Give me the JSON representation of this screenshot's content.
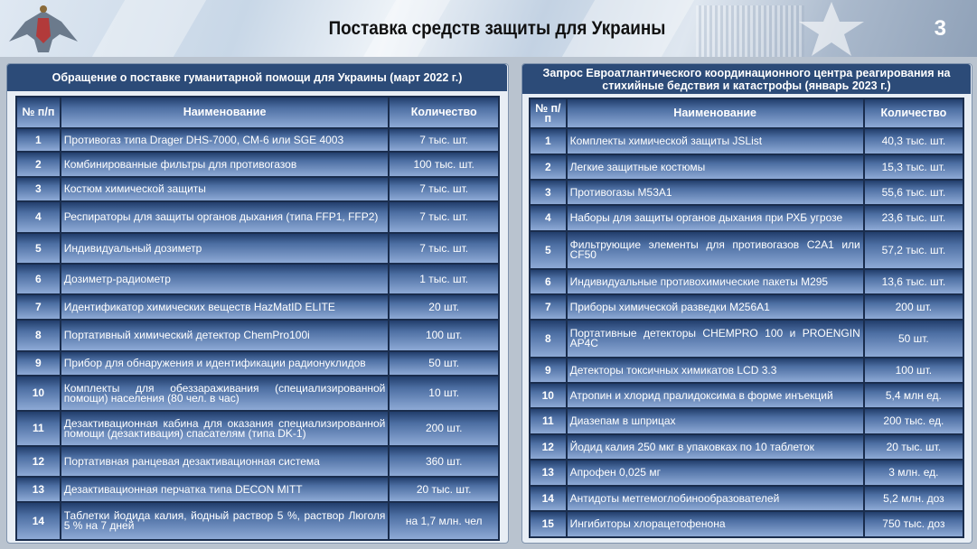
{
  "header": {
    "title": "Поставка средств защиты для Украины",
    "page_number": "3"
  },
  "colors": {
    "panel_title_bg": "#2c4b78",
    "cell_top": "#223e6c",
    "cell_bottom": "#8eaad6"
  },
  "left": {
    "title": "Обращение о поставке гуманитарной помощи для Украины (март 2022 г.)",
    "columns": [
      "№ п/п",
      "Наименование",
      "Количество"
    ],
    "rows": [
      {
        "n": "1",
        "name": "Противогаз типа Drager DHS-7000, СМ-6 или SGE 4003",
        "qty": "7 тыс. шт."
      },
      {
        "n": "2",
        "name": "Комбинированные фильтры для противогазов",
        "qty": "100 тыс. шт."
      },
      {
        "n": "3",
        "name": "Костюм химической защиты",
        "qty": "7 тыс. шт."
      },
      {
        "n": "4",
        "name": "Респираторы для защиты органов дыхания (типа FFP1, FFP2)",
        "qty": "7 тыс. шт."
      },
      {
        "n": "5",
        "name": "Индивидуальный дозиметр",
        "qty": "7 тыс. шт."
      },
      {
        "n": "6",
        "name": "Дозиметр-радиометр",
        "qty": "1 тыс. шт."
      },
      {
        "n": "7",
        "name": "Идентификатор химических веществ HazMatID ELITE",
        "qty": "20 шт."
      },
      {
        "n": "8",
        "name": "Портативный химический детектор ChemPro100i",
        "qty": "100 шт."
      },
      {
        "n": "9",
        "name": "Прибор для обнаружения и идентификации радионуклидов",
        "qty": "50 шт."
      },
      {
        "n": "10",
        "name": "Комплекты для обеззараживания (специализированной помощи) населения (80 чел. в час)",
        "qty": "10 шт."
      },
      {
        "n": "11",
        "name": "Дезактивационная кабина для оказания специализированной помощи (дезактивация) спасателям (типа DK-1)",
        "qty": "200 шт."
      },
      {
        "n": "12",
        "name": "Портативная ранцевая дезактивационная система",
        "qty": "360 шт."
      },
      {
        "n": "13",
        "name": "Дезактивационная перчатка типа DECON MITT",
        "qty": "20 тыс. шт."
      },
      {
        "n": "14",
        "name": "Таблетки йодида калия, йодный раствор 5 %, раствор Люголя 5 %  на 7 дней",
        "qty": "на 1,7 млн. чел"
      }
    ]
  },
  "right": {
    "title": "Запрос Евроатлантического координационного центра реагирования на стихийные бедствия и катастрофы (январь 2023 г.)",
    "columns": [
      "№ п/п",
      "Наименование",
      "Количество"
    ],
    "rows": [
      {
        "n": "1",
        "name": "Комплекты химической защиты JSList",
        "qty": "40,3 тыс. шт."
      },
      {
        "n": "2",
        "name": "Легкие защитные костюмы",
        "qty": "15,3 тыс. шт."
      },
      {
        "n": "3",
        "name": "Противогазы M53A1",
        "qty": "55,6 тыс. шт."
      },
      {
        "n": "4",
        "name": "Наборы для защиты органов дыхания при РХБ угрозе",
        "qty": "23,6 тыс. шт."
      },
      {
        "n": "5",
        "name": "Фильтрующие элементы для противогазов C2A1 или CF50",
        "qty": "57,2 тыс. шт."
      },
      {
        "n": "6",
        "name": "Индивидуальные противохимические пакеты M295",
        "qty": "13,6 тыс. шт."
      },
      {
        "n": "7",
        "name": "Приборы химической разведки M256A1",
        "qty": "200 шт."
      },
      {
        "n": "8",
        "name": "Портативные детекторы CHEMPRO 100 и PROENGIN AP4C",
        "qty": "50 шт."
      },
      {
        "n": "9",
        "name": "Детекторы токсичных химикатов LCD 3.3",
        "qty": "100 шт."
      },
      {
        "n": "10",
        "name": "Атропин и хлорид пралидоксима в форме инъекций",
        "qty": "5,4 млн ед."
      },
      {
        "n": "11",
        "name": "Диазепам в шприцах",
        "qty": "200 тыс. ед."
      },
      {
        "n": "12",
        "name": "Йодид калия 250 мкг в упаковках по 10 таблеток",
        "qty": "20 тыс. шт."
      },
      {
        "n": "13",
        "name": "Апрофен 0,025 мг",
        "qty": "3 млн. ед."
      },
      {
        "n": "14",
        "name": "Антидоты метгемоглобинообразователей",
        "qty": "5,2 млн. доз"
      },
      {
        "n": "15",
        "name": "Ингибиторы хлорацетофенона",
        "qty": "750 тыс. доз"
      }
    ]
  }
}
